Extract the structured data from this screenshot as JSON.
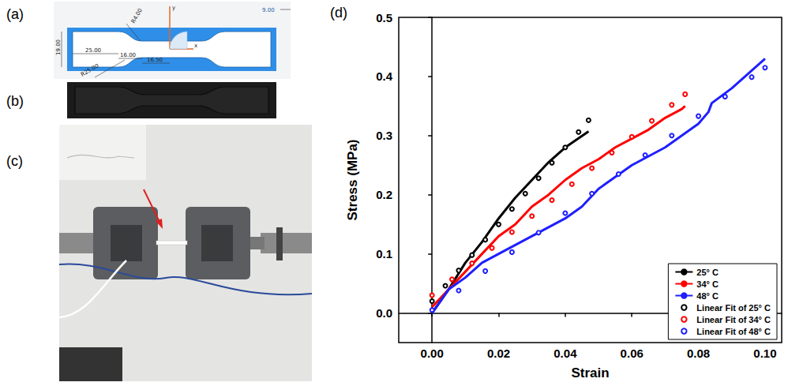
{
  "panels": [
    {
      "label": "(a)",
      "texts": [
        "R4.00",
        "19.00",
        "25.00",
        "16.00",
        "16.50",
        "R25.00",
        "y",
        "x",
        "9.00"
      ]
    },
    {
      "label": "(b)"
    },
    {
      "label": "(c)"
    },
    {
      "label": "(d)"
    }
  ],
  "chart_data": {
    "type": "line",
    "xlabel": "Strain",
    "ylabel": "Stress (MPa)",
    "xlim": [
      -0.01,
      0.105
    ],
    "xticks": [
      {
        "value": 0,
        "label": "0.00"
      },
      {
        "value": 0.02,
        "label": "0.02"
      },
      {
        "value": 0.04,
        "label": "0.04"
      },
      {
        "value": 0.06,
        "label": "0.06"
      },
      {
        "value": 0.08,
        "label": "0.08"
      },
      {
        "value": 0.1,
        "label": "0.10"
      }
    ],
    "ylim": [
      -0.05,
      0.5
    ],
    "yticks": [
      {
        "value": 0,
        "label": "0.0"
      },
      0.1,
      0.2,
      0.3,
      0.4,
      0.5
    ],
    "grid": false,
    "legend": "lower right",
    "series": [
      {
        "name": "25° C",
        "color": "#000000",
        "marker": "none",
        "line_style": "solid",
        "x": [
          0,
          0.005,
          0.01,
          0.015,
          0.02,
          0.025,
          0.03,
          0.035,
          0.04,
          0.047
        ],
        "values": [
          0,
          0.04,
          0.085,
          0.12,
          0.16,
          0.195,
          0.225,
          0.255,
          0.28,
          0.307
        ]
      },
      {
        "name": "34° C",
        "color": "#ff0000",
        "marker": "none",
        "line_style": "solid",
        "x": [
          0,
          0.005,
          0.01,
          0.015,
          0.02,
          0.025,
          0.03,
          0.035,
          0.04,
          0.045,
          0.05,
          0.055,
          0.06,
          0.065,
          0.07,
          0.075,
          0.076
        ],
        "values": [
          0.01,
          0.04,
          0.07,
          0.1,
          0.13,
          0.15,
          0.18,
          0.2,
          0.225,
          0.245,
          0.26,
          0.28,
          0.295,
          0.31,
          0.33,
          0.345,
          0.35
        ]
      },
      {
        "name": "48° C",
        "color": "#1f1fff",
        "marker": "none",
        "line_style": "solid",
        "x": [
          0,
          0.005,
          0.01,
          0.015,
          0.02,
          0.03,
          0.04,
          0.045,
          0.05,
          0.06,
          0.07,
          0.08,
          0.083,
          0.084,
          0.09,
          0.095,
          0.1
        ],
        "values": [
          0,
          0.04,
          0.06,
          0.085,
          0.1,
          0.13,
          0.16,
          0.18,
          0.21,
          0.25,
          0.28,
          0.32,
          0.34,
          0.355,
          0.38,
          0.405,
          0.43
        ]
      },
      {
        "name": "Linear Fit of 25° C",
        "color": "#000000",
        "marker": "circle",
        "line_style": "none",
        "x": [
          0,
          0.004,
          0.008,
          0.012,
          0.016,
          0.02,
          0.024,
          0.028,
          0.032,
          0.036,
          0.04,
          0.044,
          0.047
        ],
        "values": [
          0.02,
          0.046,
          0.072,
          0.098,
          0.124,
          0.15,
          0.176,
          0.202,
          0.228,
          0.254,
          0.28,
          0.306,
          0.326
        ]
      },
      {
        "name": "Linear Fit of 34° C",
        "color": "#ff0000",
        "marker": "circle",
        "line_style": "none",
        "x": [
          0,
          0.006,
          0.012,
          0.018,
          0.024,
          0.03,
          0.036,
          0.042,
          0.048,
          0.054,
          0.06,
          0.066,
          0.072,
          0.076
        ],
        "values": [
          0.03,
          0.057,
          0.084,
          0.11,
          0.137,
          0.164,
          0.191,
          0.218,
          0.245,
          0.271,
          0.298,
          0.325,
          0.352,
          0.37
        ]
      },
      {
        "name": "Linear Fit of 48° C",
        "color": "#1f1fff",
        "marker": "circle",
        "line_style": "none",
        "x": [
          0,
          0.008,
          0.016,
          0.024,
          0.032,
          0.04,
          0.048,
          0.056,
          0.064,
          0.072,
          0.08,
          0.088,
          0.096,
          0.1
        ],
        "values": [
          0.005,
          0.038,
          0.071,
          0.103,
          0.136,
          0.169,
          0.202,
          0.235,
          0.267,
          0.3,
          0.333,
          0.366,
          0.399,
          0.415
        ]
      }
    ]
  }
}
